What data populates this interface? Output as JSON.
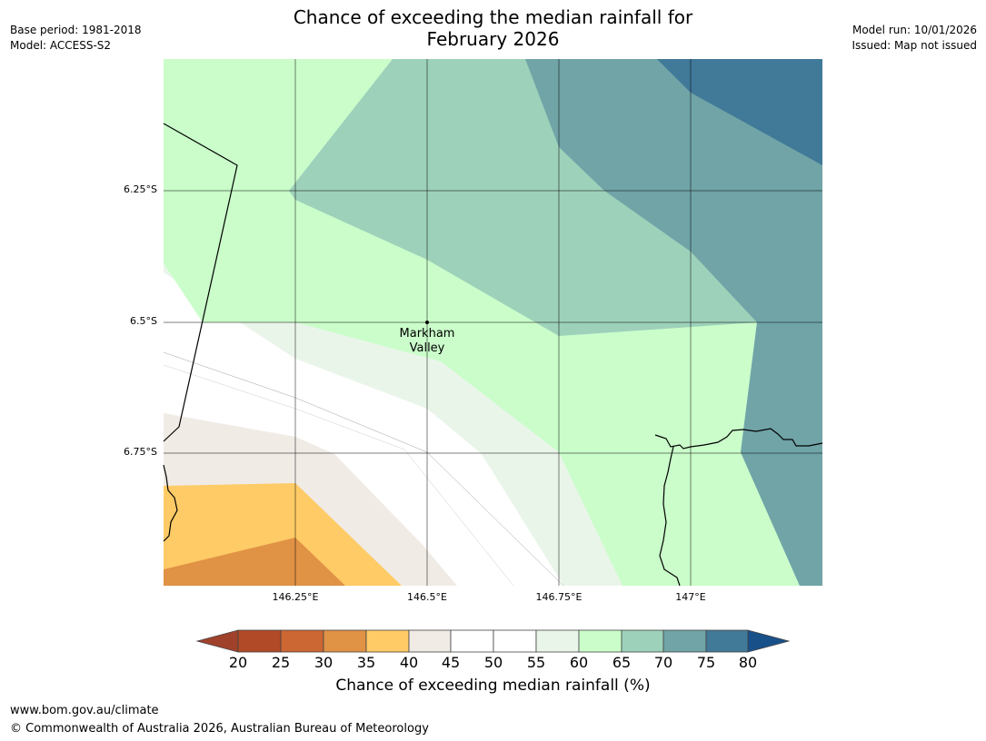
{
  "header": {
    "title_line1": "Chance of exceeding the median rainfall for",
    "title_line2": "February 2026",
    "base_period": "Base period: 1981-2018",
    "model": "Model: ACCESS-S2",
    "model_run": "Model run: 10/01/2026",
    "issued": "Issued: Map not issued"
  },
  "map": {
    "lat_ticks": [
      "6.25°S",
      "6.5°S",
      "6.75°S"
    ],
    "lon_ticks": [
      "146.25°E",
      "146.5°E",
      "146.75°E",
      "147°E"
    ],
    "place": {
      "name_line1": "Markham",
      "name_line2": "Valley"
    },
    "extent": {
      "lon_min": 146.0,
      "lon_max": 147.25,
      "lat_min": -7.0,
      "lat_max": -6.0
    }
  },
  "colorbar": {
    "title": "Chance of exceeding median rainfall (%)",
    "labels": [
      "20",
      "25",
      "30",
      "35",
      "40",
      "45",
      "50",
      "55",
      "60",
      "65",
      "70",
      "75",
      "80"
    ],
    "colors": {
      "under20": "#a0412b",
      "20-25": "#b14a27",
      "25-30": "#cc6632",
      "30-35": "#e09245",
      "35-40": "#fecb66",
      "40-45": "#f0ebe5",
      "45-50": "#ffffff",
      "50-55": "#ffffff",
      "55-60": "#eaf5ea",
      "60-65": "#cafdca",
      "65-70": "#9dd1ba",
      "70-75": "#70a4a7",
      "75-80": "#417998",
      "over80": "#18508a"
    }
  },
  "footer": {
    "url": "www.bom.gov.au/climate",
    "copyright": "© Commonwealth of Australia 2026, Australian Bureau of Meteorology"
  }
}
